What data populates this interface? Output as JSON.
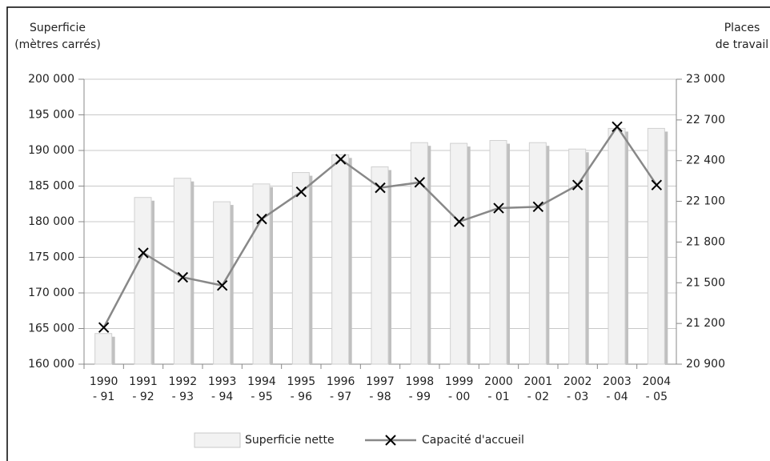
{
  "chart_data": {
    "type": "bar-line",
    "y_label": [
      "Superficie",
      "(mètres carrés)"
    ],
    "y2_label": [
      "Places",
      "de travail"
    ],
    "categories": [
      "1990 - 91",
      "1991 - 92",
      "1992 - 93",
      "1993 - 94",
      "1994 - 95",
      "1995 - 96",
      "1996 - 97",
      "1997 - 98",
      "1998 - 99",
      "1999 - 00",
      "2000 - 01",
      "2001 - 02",
      "2002 - 03",
      "2003 - 04",
      "2004 - 05"
    ],
    "series": [
      {
        "name": "Superficie nette",
        "color": "#f2f2f2",
        "kind": "bar",
        "axis": "y",
        "values": [
          164300,
          183400,
          186100,
          182800,
          185300,
          186900,
          189400,
          187700,
          191100,
          191000,
          191400,
          191100,
          190200,
          193100,
          193100
        ]
      },
      {
        "name": "Capacité d'accueil",
        "color": "#888888",
        "kind": "line",
        "axis": "y2",
        "values": [
          21170,
          21720,
          21540,
          21480,
          21970,
          22170,
          22410,
          22200,
          22240,
          21950,
          22050,
          22060,
          22220,
          22650,
          22220
        ]
      }
    ],
    "ylim": [
      160000,
      200000
    ],
    "yticks": [
      {
        "value": 160000,
        "label": "160 000"
      },
      {
        "value": 165000,
        "label": "165 000"
      },
      {
        "value": 170000,
        "label": "170 000"
      },
      {
        "value": 175000,
        "label": "175 000"
      },
      {
        "value": 180000,
        "label": "180 000"
      },
      {
        "value": 185000,
        "label": "185 000"
      },
      {
        "value": 190000,
        "label": "190 000"
      },
      {
        "value": 195000,
        "label": "195 000"
      },
      {
        "value": 200000,
        "label": "200 000"
      }
    ],
    "y2lim": [
      20900,
      23000
    ],
    "y2ticks": [
      {
        "value": 20900,
        "label": "20 900"
      },
      {
        "value": 21200,
        "label": "21 200"
      },
      {
        "value": 21500,
        "label": "21 500"
      },
      {
        "value": 21800,
        "label": "21 800"
      },
      {
        "value": 22100,
        "label": "22 100"
      },
      {
        "value": 22400,
        "label": "22 400"
      },
      {
        "value": 22700,
        "label": "22 700"
      },
      {
        "value": 23000,
        "label": "23 000"
      }
    ],
    "grid": true,
    "legend": "bottom"
  }
}
